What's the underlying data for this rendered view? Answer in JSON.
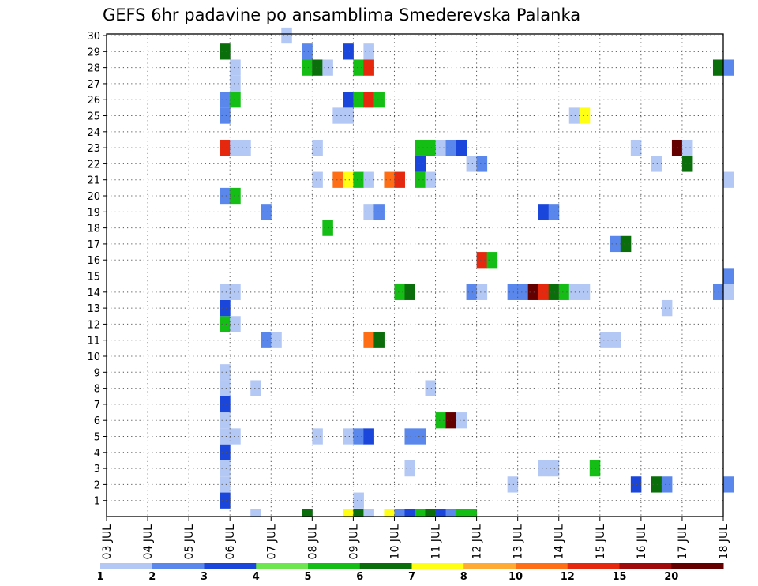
{
  "chart_data": {
    "type": "heatmap",
    "title": "GEFS 6hr padavine po ansamblima Smederevska Palanka",
    "xlabel": "",
    "ylabel": "",
    "x_ticks": [
      "03 JUL",
      "04 JUL",
      "05 JUL",
      "06 JUL",
      "07 JUL",
      "08 JUL",
      "09 JUL",
      "10 JUL",
      "11 JUL",
      "12 JUL",
      "13 JUL",
      "14 JUL",
      "15 JUL",
      "16 JUL",
      "17 JUL",
      "18 JUL"
    ],
    "y_ticks": [
      "1",
      "2",
      "3",
      "4",
      "5",
      "6",
      "7",
      "8",
      "9",
      "10",
      "11",
      "12",
      "13",
      "14",
      "15",
      "16",
      "17",
      "18",
      "19",
      "20",
      "21",
      "22",
      "23",
      "24",
      "25",
      "26",
      "27",
      "28",
      "29",
      "30"
    ],
    "x_range_days": [
      3,
      18
    ],
    "y_range_members": [
      0,
      30
    ],
    "grid": true,
    "legend_position": "bottom",
    "legend_labels": [
      "1",
      "2",
      "3",
      "4",
      "5",
      "6",
      "7",
      "8",
      "10",
      "12",
      "15",
      "20"
    ],
    "legend_colors": [
      "#b4c8f5",
      "#5a87eb",
      "#1a46dc",
      "#6ee650",
      "#14be14",
      "#0a6e0a",
      "#ffff14",
      "#ffaa32",
      "#ff6e14",
      "#e6280f",
      "#a00a0a",
      "#640000"
    ],
    "cell_legend": "each cell = [day, member, color class index into legend_colors]",
    "cells": [
      [
        5.75,
        0,
        2
      ],
      [
        5.75,
        1,
        0
      ],
      [
        5.75,
        2,
        0
      ],
      [
        5.75,
        3,
        2
      ],
      [
        5.75,
        4,
        0
      ],
      [
        5.75,
        5,
        0
      ],
      [
        5.75,
        6,
        2
      ],
      [
        5.75,
        7,
        0
      ],
      [
        5.75,
        8,
        0
      ],
      [
        5.75,
        11,
        4
      ],
      [
        5.75,
        12,
        2
      ],
      [
        5.75,
        13,
        0
      ],
      [
        5.75,
        19,
        1
      ],
      [
        5.75,
        22,
        9
      ],
      [
        5.75,
        24,
        1
      ],
      [
        5.75,
        25,
        1
      ],
      [
        5.75,
        28,
        5
      ],
      [
        6.0,
        4,
        0
      ],
      [
        6.0,
        11,
        0
      ],
      [
        6.0,
        13,
        0
      ],
      [
        6.0,
        19,
        4
      ],
      [
        6.0,
        22,
        0
      ],
      [
        6.0,
        25,
        4
      ],
      [
        6.0,
        26,
        0
      ],
      [
        6.0,
        27,
        0
      ],
      [
        6.25,
        22,
        0
      ],
      [
        6.5,
        7,
        0
      ],
      [
        6.5,
        -1,
        0
      ],
      [
        6.75,
        10,
        1
      ],
      [
        6.75,
        18,
        1
      ],
      [
        7.0,
        10,
        0
      ],
      [
        7.25,
        29,
        0
      ],
      [
        7.75,
        28,
        1
      ],
      [
        7.75,
        27,
        4
      ],
      [
        7.75,
        -1,
        5
      ],
      [
        8.0,
        4,
        0
      ],
      [
        8.0,
        20,
        0
      ],
      [
        8.0,
        22,
        0
      ],
      [
        8.0,
        27,
        5
      ],
      [
        8.25,
        27,
        0
      ],
      [
        8.25,
        17,
        4
      ],
      [
        8.5,
        24,
        0
      ],
      [
        8.5,
        20,
        8
      ],
      [
        8.75,
        24,
        0
      ],
      [
        8.75,
        20,
        6
      ],
      [
        8.75,
        4,
        0
      ],
      [
        8.75,
        28,
        2
      ],
      [
        8.75,
        25,
        2
      ],
      [
        8.75,
        -1,
        6
      ],
      [
        9.0,
        20,
        4
      ],
      [
        9.0,
        27,
        4
      ],
      [
        9.0,
        25,
        4
      ],
      [
        9.0,
        4,
        1
      ],
      [
        9.0,
        0,
        0
      ],
      [
        9.0,
        -1,
        5
      ],
      [
        9.25,
        27,
        9
      ],
      [
        9.25,
        25,
        9
      ],
      [
        9.25,
        28,
        0
      ],
      [
        9.25,
        20,
        0
      ],
      [
        9.25,
        18,
        0
      ],
      [
        9.25,
        10,
        8
      ],
      [
        9.25,
        4,
        2
      ],
      [
        9.25,
        -1,
        0
      ],
      [
        9.5,
        25,
        4
      ],
      [
        9.5,
        10,
        5
      ],
      [
        9.5,
        18,
        1
      ],
      [
        9.75,
        20,
        8
      ],
      [
        9.75,
        -1,
        6
      ],
      [
        10.0,
        20,
        9
      ],
      [
        10.0,
        13,
        4
      ],
      [
        10.0,
        -1,
        1
      ],
      [
        10.25,
        13,
        5
      ],
      [
        10.25,
        4,
        1
      ],
      [
        10.25,
        2,
        0
      ],
      [
        10.25,
        -1,
        2
      ],
      [
        10.5,
        4,
        1
      ],
      [
        10.5,
        22,
        4
      ],
      [
        10.5,
        21,
        2
      ],
      [
        10.5,
        20,
        4
      ],
      [
        10.5,
        -1,
        4
      ],
      [
        10.75,
        22,
        4
      ],
      [
        10.75,
        20,
        0
      ],
      [
        10.75,
        7,
        0
      ],
      [
        10.75,
        -1,
        5
      ],
      [
        11.0,
        22,
        0
      ],
      [
        11.0,
        5,
        4
      ],
      [
        11.0,
        -1,
        2
      ],
      [
        11.25,
        22,
        1
      ],
      [
        11.25,
        5,
        11
      ],
      [
        11.25,
        -1,
        1
      ],
      [
        11.5,
        22,
        2
      ],
      [
        11.5,
        5,
        0
      ],
      [
        11.5,
        -1,
        4
      ],
      [
        11.75,
        13,
        1
      ],
      [
        11.75,
        21,
        0
      ],
      [
        11.75,
        -1,
        4
      ],
      [
        12.0,
        21,
        1
      ],
      [
        12.0,
        15,
        9
      ],
      [
        12.0,
        13,
        0
      ],
      [
        12.25,
        15,
        4
      ],
      [
        12.75,
        1,
        0
      ],
      [
        12.75,
        13,
        1
      ],
      [
        13.0,
        13,
        1
      ],
      [
        13.25,
        13,
        11
      ],
      [
        13.5,
        13,
        9
      ],
      [
        13.5,
        18,
        2
      ],
      [
        13.5,
        2,
        0
      ],
      [
        13.75,
        13,
        5
      ],
      [
        13.75,
        18,
        1
      ],
      [
        13.75,
        2,
        0
      ],
      [
        14.0,
        13,
        4
      ],
      [
        14.25,
        13,
        0
      ],
      [
        14.25,
        24,
        0
      ],
      [
        14.5,
        13,
        0
      ],
      [
        14.5,
        24,
        6
      ],
      [
        14.75,
        2,
        4
      ],
      [
        15.0,
        10,
        0
      ],
      [
        15.25,
        10,
        0
      ],
      [
        15.25,
        16,
        1
      ],
      [
        15.5,
        16,
        5
      ],
      [
        15.75,
        22,
        0
      ],
      [
        15.75,
        1,
        2
      ],
      [
        16.25,
        21,
        0
      ],
      [
        16.25,
        1,
        5
      ],
      [
        16.5,
        1,
        1
      ],
      [
        16.5,
        12,
        0
      ],
      [
        16.75,
        22,
        11
      ],
      [
        17.0,
        22,
        0
      ],
      [
        17.0,
        21,
        5
      ],
      [
        17.75,
        27,
        5
      ],
      [
        17.75,
        13,
        1
      ],
      [
        18.0,
        27,
        1
      ],
      [
        18.0,
        13,
        0
      ],
      [
        18.0,
        14,
        1
      ],
      [
        18.0,
        20,
        0
      ],
      [
        18.0,
        1,
        1
      ]
    ]
  }
}
